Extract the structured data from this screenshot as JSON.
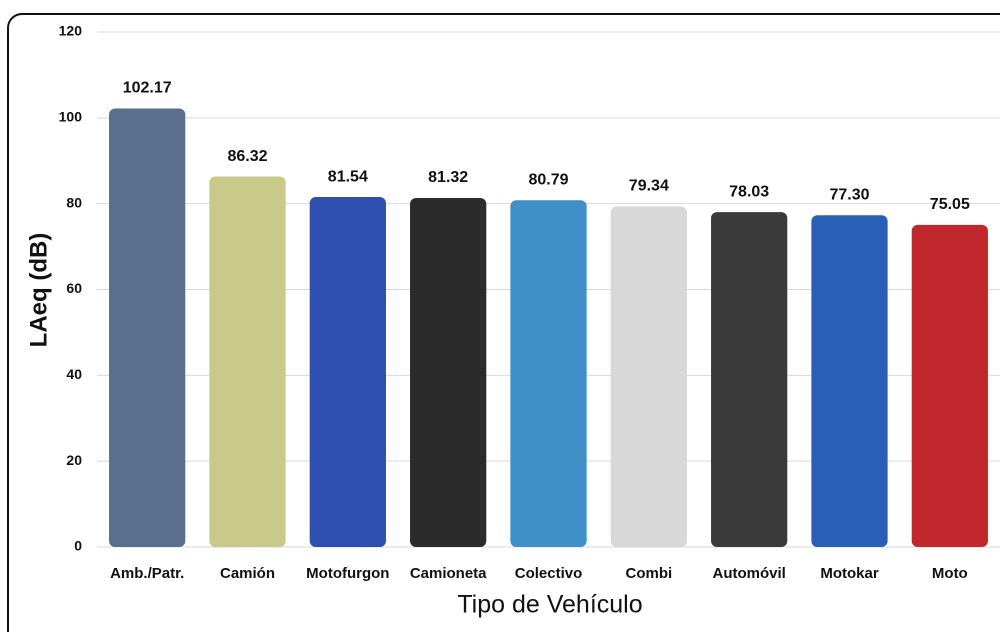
{
  "chart_data": {
    "type": "bar",
    "y_label": "LAeq (dB)",
    "x_label": "Tipo de Vehículo",
    "categories": [
      "Amb./Patr.",
      "Camión",
      "Motofurgon",
      "Camioneta",
      "Colectivo",
      "Combi",
      "Automóvil",
      "Motokar",
      "Moto"
    ],
    "values": [
      102.17,
      86.32,
      81.54,
      81.32,
      80.79,
      79.34,
      78.03,
      77.3,
      75.05
    ],
    "value_labels": [
      "102.17",
      "86.32",
      "81.54",
      "81.32",
      "80.79",
      "79.34",
      "78.03",
      "77.30",
      "75.05"
    ],
    "colors": [
      "#5a6f8c",
      "#c9c98a",
      "#2f4fb0",
      "#2b2b2b",
      "#3f8fc9",
      "#d8d8d8",
      "#3a3a3a",
      "#2a5fb8",
      "#c0282e"
    ],
    "ylim": [
      0,
      120
    ],
    "yticks": [
      0,
      20,
      40,
      60,
      80,
      100,
      120
    ],
    "grid": true
  }
}
